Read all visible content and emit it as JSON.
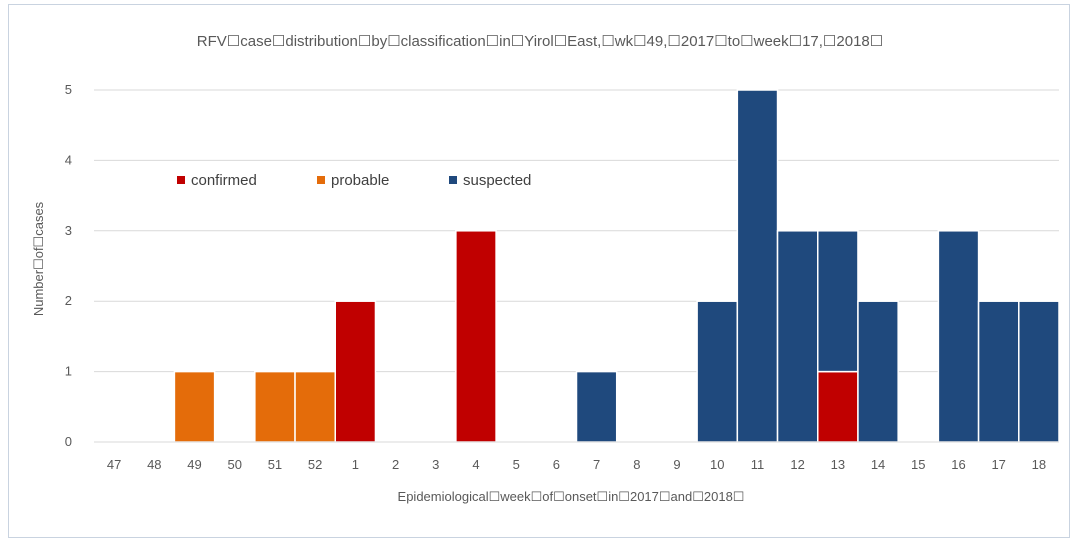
{
  "chart_data": {
    "type": "bar",
    "title": "RFV☐case☐distribution☐by☐classification☐in☐Yirol☐East,☐wk☐49,☐2017☐to☐week☐17,☐2018☐",
    "xlabel": "Epidemiological☐week☐of☐onset☐in☐2017☐and☐2018☐",
    "ylabel": "Number☐of☐cases",
    "ylim": [
      0,
      5
    ],
    "yticks": [
      0,
      1,
      2,
      3,
      4,
      5
    ],
    "grid": true,
    "stacked": true,
    "legend_position": "upper-left inside plot",
    "categories": [
      "47",
      "48",
      "49",
      "50",
      "51",
      "52",
      "1",
      "2",
      "3",
      "4",
      "5",
      "6",
      "7",
      "8",
      "9",
      "10",
      "11",
      "12",
      "13",
      "14",
      "15",
      "16",
      "17",
      "18"
    ],
    "series": [
      {
        "name": "confirmed",
        "color": "#c00000",
        "values": [
          0,
          0,
          0,
          0,
          0,
          0,
          2,
          0,
          0,
          3,
          0,
          0,
          0,
          0,
          0,
          0,
          0,
          0,
          1,
          0,
          0,
          0,
          0,
          0
        ]
      },
      {
        "name": "probable",
        "color": "#e46c0a",
        "values": [
          0,
          0,
          1,
          0,
          1,
          1,
          0,
          0,
          0,
          0,
          0,
          0,
          0,
          0,
          0,
          0,
          0,
          0,
          0,
          0,
          0,
          0,
          0,
          0
        ]
      },
      {
        "name": "suspected",
        "color": "#1f497d",
        "values": [
          0,
          0,
          0,
          0,
          0,
          0,
          0,
          0,
          0,
          0,
          0,
          0,
          1,
          0,
          0,
          2,
          5,
          3,
          2,
          2,
          0,
          3,
          2,
          2
        ]
      }
    ]
  }
}
